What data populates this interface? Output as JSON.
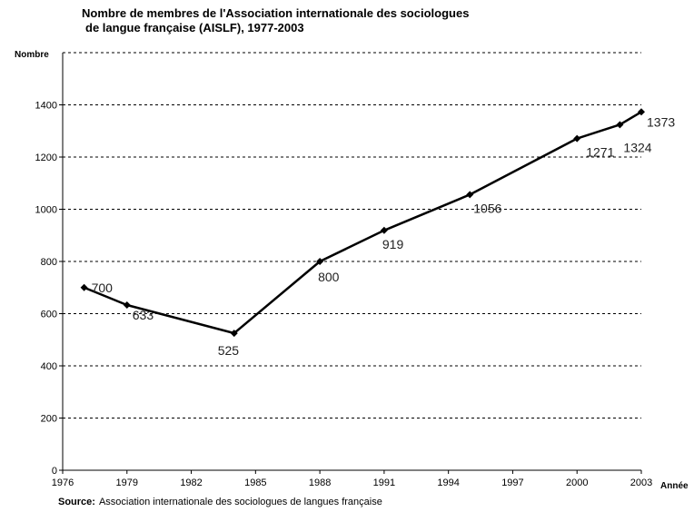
{
  "chart_data": {
    "type": "line",
    "title_line1": "Nombre de membres de l'Association internationale des sociologues",
    "title_line2": "de langue française (AISLF), 1977-2003",
    "ylabel": "Nombre",
    "xlabel": "Année",
    "x": [
      1977,
      1979,
      1984,
      1988,
      1991,
      1995,
      2000,
      2002,
      2003
    ],
    "series": [
      {
        "values": [
          700,
          633,
          525,
          800,
          919,
          1056,
          1271,
          1324,
          1373
        ]
      }
    ],
    "xlim": [
      1976,
      2003
    ],
    "ylim": [
      0,
      1600
    ],
    "xticks": [
      1976,
      1979,
      1982,
      1985,
      1988,
      1991,
      1994,
      1997,
      2000,
      2003
    ],
    "yticks": [
      0,
      200,
      400,
      600,
      800,
      1000,
      1200,
      1400
    ],
    "grid": "horizontal-dashed",
    "legend": "none",
    "line_color": "#000000"
  },
  "source": {
    "label": "Source:",
    "text": "Association internationale des sociologues de langues française"
  }
}
